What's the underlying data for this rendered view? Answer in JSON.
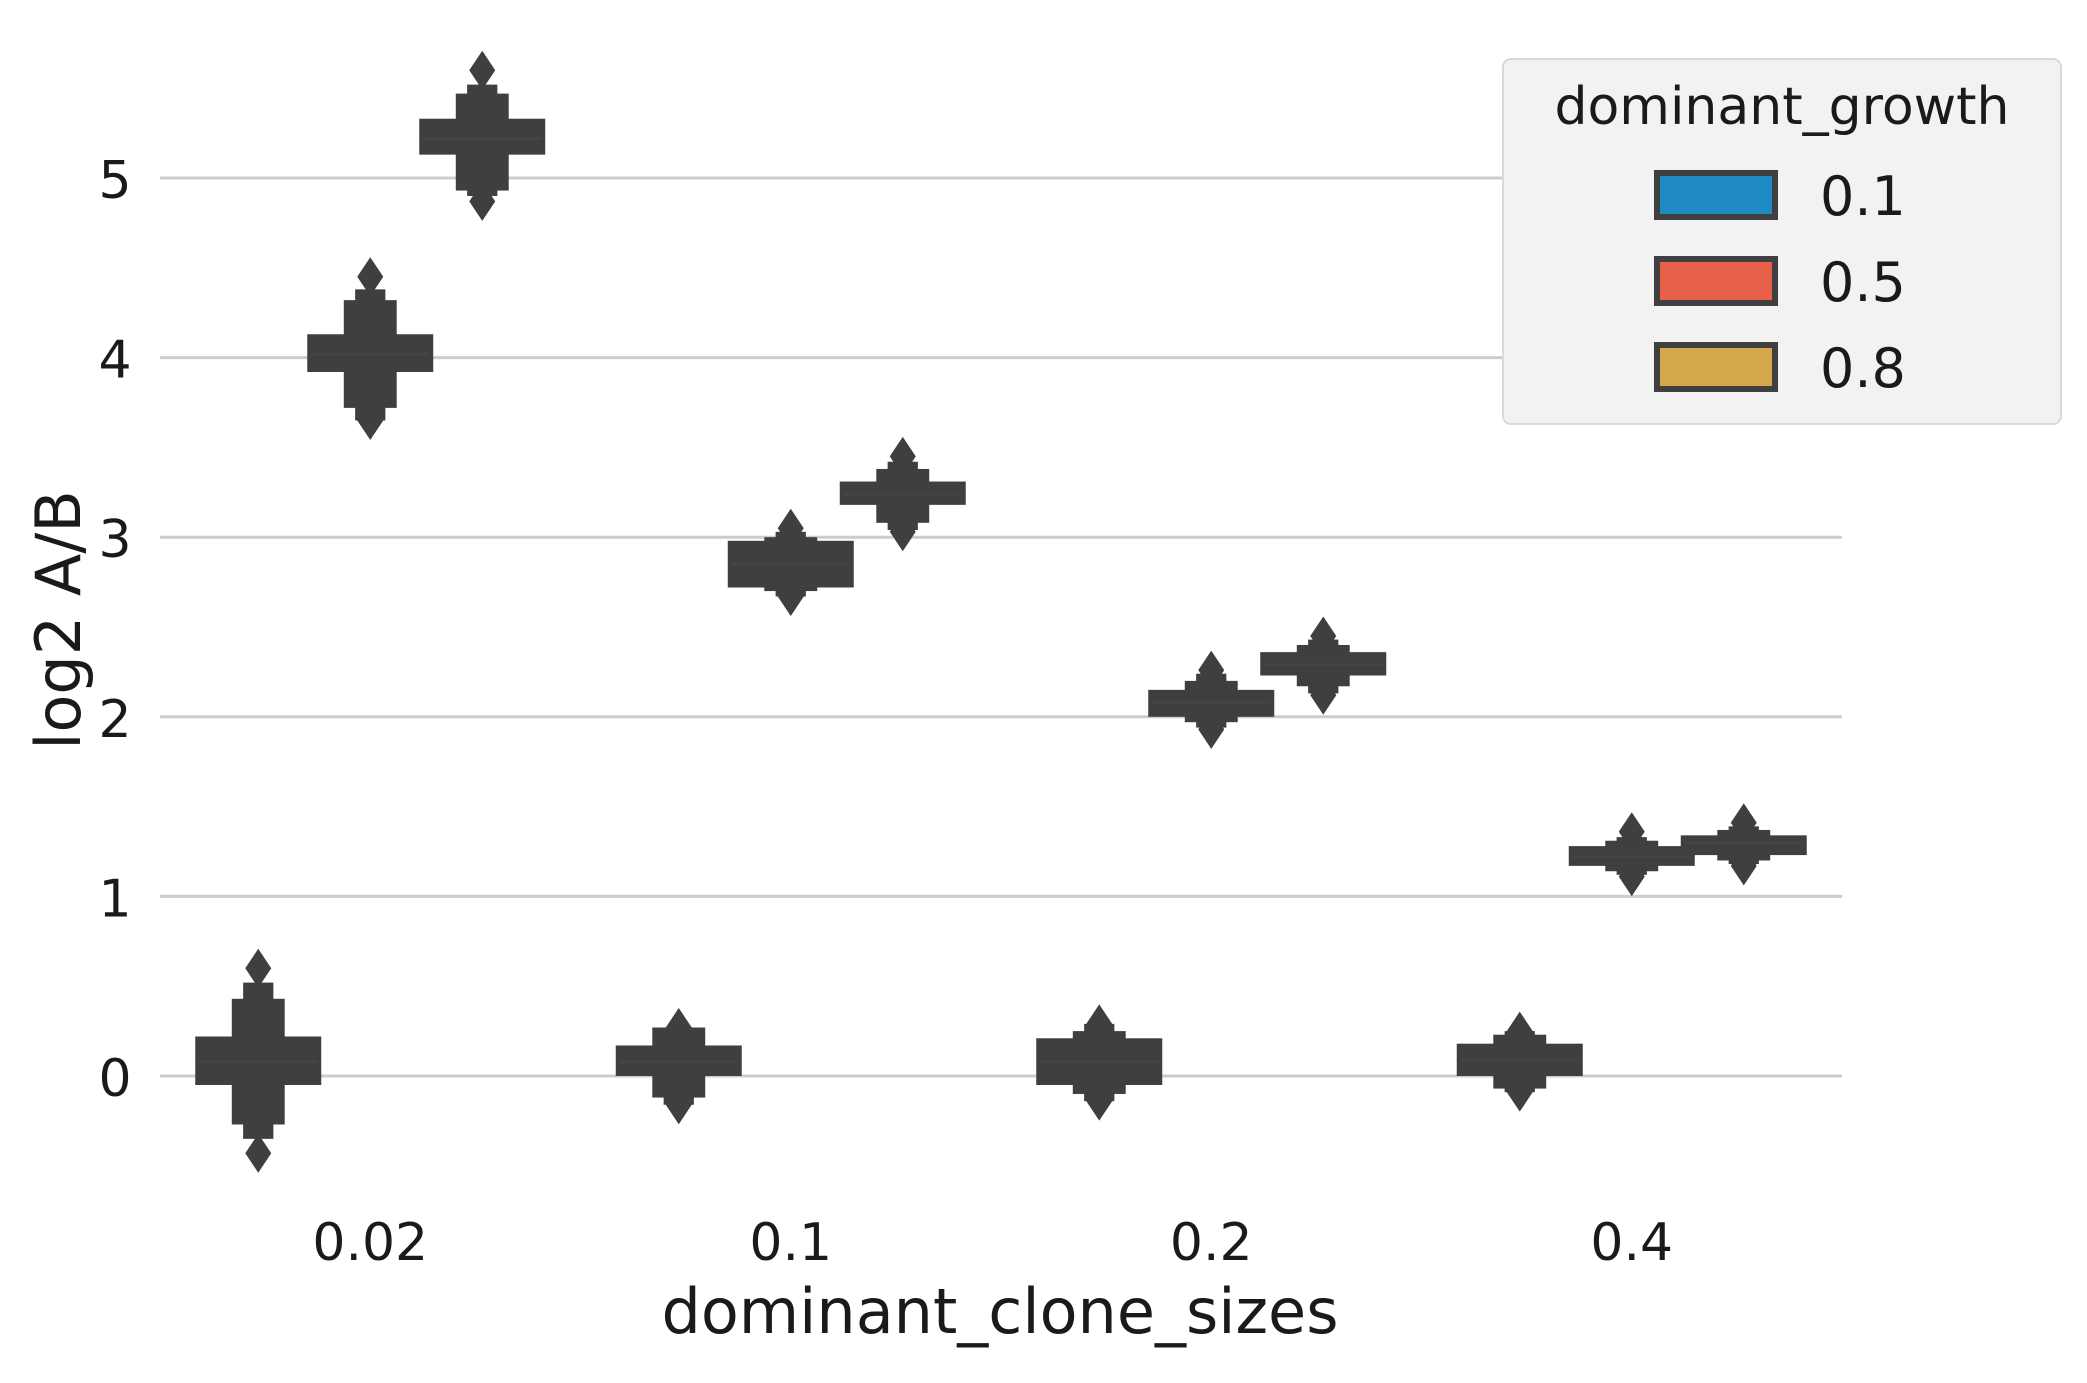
{
  "chart_data": {
    "type": "boxen",
    "xlabel": "dominant_clone_sizes",
    "ylabel": "log2 A/B",
    "categories": [
      "0.02",
      "0.1",
      "0.2",
      "0.4"
    ],
    "ylim": [
      -0.65,
      5.9
    ],
    "yticks": [
      0,
      1,
      2,
      3,
      4,
      5
    ],
    "ytick_labels": [
      "0",
      "1",
      "2",
      "3",
      "4",
      "5"
    ],
    "grid": "horizontal",
    "legend": {
      "title": "dominant_growth",
      "position": "top-right",
      "entries": [
        {
          "label": "0.1",
          "color": "#1f8bc6"
        },
        {
          "label": "0.5",
          "color": "#e8604a"
        },
        {
          "label": "0.8",
          "color": "#d4a74b"
        }
      ]
    },
    "box_color": "#3f3f3f",
    "grid_color": "#cccccc",
    "series": [
      {
        "name": "0.1",
        "boxes": [
          {
            "category": "0.02",
            "q1": -0.05,
            "q3": 0.22,
            "median": 0.08,
            "k2": [
              -0.27,
              0.43
            ],
            "k3": [
              -0.35,
              0.52
            ],
            "outliers": [
              -0.43,
              0.6
            ]
          },
          {
            "category": "0.1",
            "q1": 0.0,
            "q3": 0.17,
            "median": 0.08,
            "k2": [
              -0.12,
              0.27
            ],
            "k3": [
              -0.16,
              0.27
            ],
            "outliers": [
              -0.16,
              0.27
            ]
          },
          {
            "category": "0.2",
            "q1": -0.05,
            "q3": 0.21,
            "median": 0.08,
            "k2": [
              -0.1,
              0.25
            ],
            "k3": [
              -0.14,
              0.29
            ],
            "outliers": [
              -0.14,
              0.29
            ]
          },
          {
            "category": "0.4",
            "q1": 0.0,
            "q3": 0.18,
            "median": 0.09,
            "k2": [
              -0.07,
              0.23
            ],
            "k3": [
              -0.09,
              0.25
            ],
            "outliers": [
              -0.09,
              0.25
            ]
          }
        ]
      },
      {
        "name": "0.5",
        "boxes": [
          {
            "category": "0.02",
            "q1": 3.92,
            "q3": 4.13,
            "median": 4.02,
            "k2": [
              3.72,
              4.32
            ],
            "k3": [
              3.65,
              4.38
            ],
            "outliers": [
              3.65,
              4.45
            ]
          },
          {
            "category": "0.1",
            "q1": 2.72,
            "q3": 2.98,
            "median": 2.85,
            "k2": [
              2.7,
              3.0
            ],
            "k3": [
              2.67,
              3.03
            ],
            "outliers": [
              2.67,
              3.05
            ]
          },
          {
            "category": "0.2",
            "q1": 2.0,
            "q3": 2.15,
            "median": 2.08,
            "k2": [
              1.97,
              2.2
            ],
            "k3": [
              1.94,
              2.24
            ],
            "outliers": [
              1.93,
              2.26
            ]
          },
          {
            "category": "0.4",
            "q1": 1.17,
            "q3": 1.28,
            "median": 1.22,
            "k2": [
              1.14,
              1.31
            ],
            "k3": [
              1.12,
              1.33
            ],
            "outliers": [
              1.11,
              1.36
            ]
          }
        ]
      },
      {
        "name": "0.8",
        "boxes": [
          {
            "category": "0.02",
            "q1": 5.13,
            "q3": 5.33,
            "median": 5.22,
            "k2": [
              4.93,
              5.47
            ],
            "k3": [
              4.9,
              5.52
            ],
            "outliers": [
              4.87,
              5.6
            ]
          },
          {
            "category": "0.1",
            "q1": 3.18,
            "q3": 3.31,
            "median": 3.24,
            "k2": [
              3.08,
              3.38
            ],
            "k3": [
              3.04,
              3.42
            ],
            "outliers": [
              3.03,
              3.45
            ]
          },
          {
            "category": "0.2",
            "q1": 2.23,
            "q3": 2.36,
            "median": 2.29,
            "k2": [
              2.17,
              2.4
            ],
            "k3": [
              2.13,
              2.43
            ],
            "outliers": [
              2.12,
              2.45
            ]
          },
          {
            "category": "0.4",
            "q1": 1.23,
            "q3": 1.34,
            "median": 1.3,
            "k2": [
              1.2,
              1.37
            ],
            "k3": [
              1.18,
              1.39
            ],
            "outliers": [
              1.17,
              1.41
            ]
          }
        ]
      }
    ]
  }
}
